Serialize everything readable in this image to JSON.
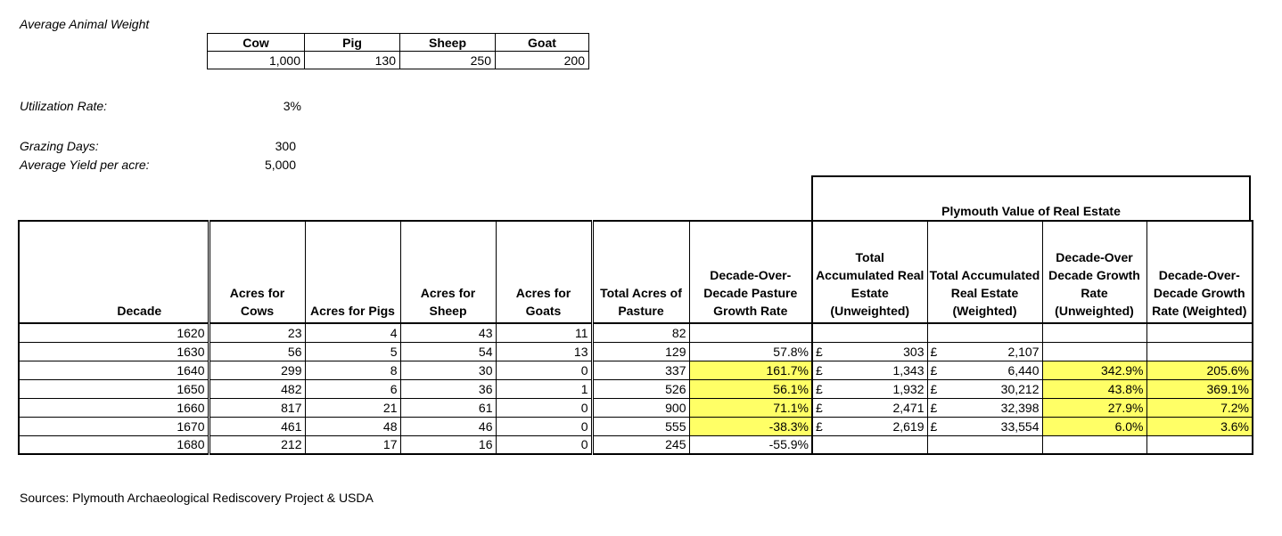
{
  "labels": {
    "avg_weight": "Average Animal Weight",
    "utilization_label": "Utilization Rate:",
    "utilization_value": "3%",
    "grazing_label": "Grazing Days:",
    "grazing_value": "300",
    "yield_label": "Average Yield per acre:",
    "yield_value": "5,000",
    "sources": "Sources: Plymouth Archaeological Rediscovery Project & USDA",
    "real_estate_title": "Plymouth Value of Real Estate"
  },
  "weights": {
    "headers": [
      "Cow",
      "Pig",
      "Sheep",
      "Goat"
    ],
    "values": [
      "1,000",
      "130",
      "250",
      "200"
    ]
  },
  "table": {
    "headers": [
      "Decade",
      "Acres for Cows",
      "Acres for Pigs",
      "Acres for Sheep",
      "Acres for Goats",
      "Total Acres of Pasture",
      "Decade-Over-Decade Pasture Growth Rate",
      "Total Accumulated Real Estate (Unweighted)",
      "Total Accumulated Real Estate (Weighted)",
      "Decade-Over Decade Growth Rate (Unweighted)",
      "Decade-Over-Decade Growth Rate (Weighted)"
    ],
    "currency": "£",
    "rows": [
      {
        "decade": "1620",
        "cows": "23",
        "pigs": "4",
        "sheep": "43",
        "goats": "11",
        "total": "82",
        "growth": "",
        "unw": "",
        "w": "",
        "gr_unw": "",
        "gr_w": ""
      },
      {
        "decade": "1630",
        "cows": "56",
        "pigs": "5",
        "sheep": "54",
        "goats": "13",
        "total": "129",
        "growth": "57.8%",
        "unw": "303",
        "w": "2,107",
        "gr_unw": "",
        "gr_w": ""
      },
      {
        "decade": "1640",
        "cows": "299",
        "pigs": "8",
        "sheep": "30",
        "goats": "0",
        "total": "337",
        "growth": "161.7%",
        "unw": "1,343",
        "w": "6,440",
        "gr_unw": "342.9%",
        "gr_w": "205.6%"
      },
      {
        "decade": "1650",
        "cows": "482",
        "pigs": "6",
        "sheep": "36",
        "goats": "1",
        "total": "526",
        "growth": "56.1%",
        "unw": "1,932",
        "w": "30,212",
        "gr_unw": "43.8%",
        "gr_w": "369.1%"
      },
      {
        "decade": "1660",
        "cows": "817",
        "pigs": "21",
        "sheep": "61",
        "goats": "0",
        "total": "900",
        "growth": "71.1%",
        "unw": "2,471",
        "w": "32,398",
        "gr_unw": "27.9%",
        "gr_w": "7.2%"
      },
      {
        "decade": "1670",
        "cows": "461",
        "pigs": "48",
        "sheep": "46",
        "goats": "0",
        "total": "555",
        "growth": "-38.3%",
        "unw": "2,619",
        "w": "33,554",
        "gr_unw": "6.0%",
        "gr_w": "3.6%"
      },
      {
        "decade": "1680",
        "cows": "212",
        "pigs": "17",
        "sheep": "16",
        "goats": "0",
        "total": "245",
        "growth": "-55.9%",
        "unw": "",
        "w": "",
        "gr_unw": "",
        "gr_w": ""
      }
    ],
    "highlight_color": "#ffff66"
  }
}
